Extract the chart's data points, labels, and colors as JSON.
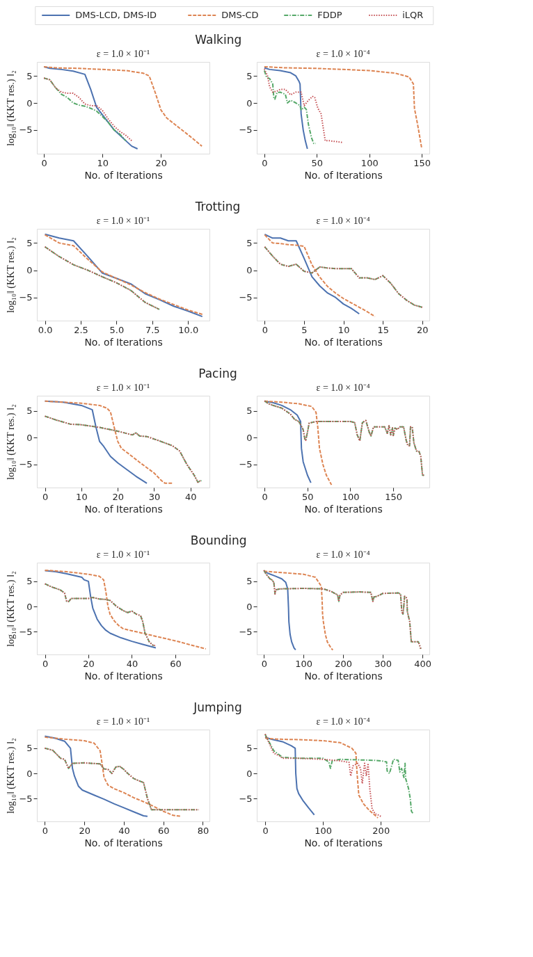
{
  "chart_data": [
    {
      "type": "line",
      "title": "Walking",
      "subtitle": "ε = 1.0 × 10⁻¹",
      "xlabel": "No. of Iterations",
      "ylabel": "log₁₀‖ (KKT res.) ‖₂",
      "legend": "top",
      "xlim": [
        -1.2,
        28.3
      ],
      "xticks": [
        0,
        10,
        20
      ],
      "ylim": [
        -9.4,
        7.6
      ],
      "yticks": [
        -5,
        0,
        5
      ],
      "series": [
        {
          "name": "DMS-LCD, DMS-ID",
          "color": "#4c72b0",
          "line_style": "solid",
          "x": [
            0,
            1,
            3,
            5,
            7,
            8,
            9,
            10,
            11,
            12,
            13,
            14,
            15,
            16
          ],
          "values": [
            6.7,
            6.4,
            6.2,
            5.9,
            5.3,
            2.5,
            -0.8,
            -2.2,
            -3.6,
            -5,
            -6,
            -7,
            -8,
            -8.5
          ]
        },
        {
          "name": "DMS-CD",
          "color": "#dd8452",
          "line_style": "dashed",
          "x": [
            0,
            2,
            6,
            10,
            14,
            17,
            18,
            19,
            20,
            21,
            23,
            25,
            27
          ],
          "values": [
            6.7,
            6.5,
            6.4,
            6.2,
            6,
            5.5,
            5,
            2,
            -1.3,
            -2.8,
            -4.5,
            -6.2,
            -8
          ]
        },
        {
          "name": "FDDP",
          "color": "#55a868",
          "line_style": "dashdot",
          "x": [
            0,
            1,
            2,
            3,
            4,
            5,
            6,
            7,
            8,
            9,
            10,
            11,
            12,
            13,
            14
          ],
          "values": [
            4.6,
            4.3,
            2.8,
            1.6,
            1,
            0,
            -0.4,
            -0.6,
            -1,
            -1.5,
            -2.5,
            -3.6,
            -5,
            -5.8,
            -7
          ]
        },
        {
          "name": "iLQR",
          "color": "#c44e52",
          "line_style": "dotted",
          "x": [
            0,
            1,
            2,
            3,
            4,
            5,
            6,
            7,
            8,
            9,
            10,
            11,
            12,
            13,
            14,
            15
          ],
          "values": [
            4.6,
            4.3,
            2.8,
            2,
            1.8,
            1.8,
            1,
            -0.2,
            -0.5,
            -0.5,
            -1.4,
            -3,
            -4.3,
            -5.3,
            -6,
            -7
          ]
        }
      ]
    },
    {
      "type": "line",
      "subtitle": "ε = 1.0 × 10⁻⁴",
      "xlabel": "No. of Iterations",
      "xlim": [
        -7.2,
        157.2
      ],
      "xticks": [
        0,
        50,
        100,
        150
      ],
      "ylim": [
        -9.4,
        7.6
      ],
      "yticks": [
        -5,
        0,
        5
      ],
      "series": [
        {
          "color": "#4c72b0",
          "line_style": "solid",
          "x": [
            0,
            5,
            15,
            25,
            30,
            33,
            34,
            35,
            37,
            39,
            41
          ],
          "values": [
            6.5,
            6.2,
            6,
            5.6,
            5,
            4,
            3.5,
            -2,
            -5,
            -7,
            -8.5
          ]
        },
        {
          "color": "#dd8452",
          "line_style": "dashed",
          "x": [
            0,
            20,
            50,
            75,
            100,
            125,
            138,
            142,
            143,
            146,
            150
          ],
          "values": [
            6.7,
            6.5,
            6.4,
            6.2,
            6,
            5.5,
            4.8,
            3.5,
            -1,
            -4,
            -8.5
          ]
        },
        {
          "color": "#55a868",
          "line_style": "dashdot",
          "x": [
            0,
            2,
            5,
            8,
            9,
            10,
            12,
            15,
            20,
            22,
            25,
            28,
            30,
            34,
            35,
            38,
            40,
            42,
            45,
            47,
            49
          ],
          "values": [
            6,
            4.8,
            4.5,
            3.5,
            1,
            0.7,
            1.9,
            2,
            1.6,
            0,
            0.5,
            0.2,
            0,
            -0.5,
            -1.3,
            -0.8,
            -1.2,
            -4,
            -6.5,
            -7.5,
            -7.5
          ]
        },
        {
          "color": "#c44e52",
          "line_style": "dotted",
          "x": [
            0,
            3,
            5,
            8,
            12,
            15,
            20,
            25,
            30,
            35,
            38,
            42,
            46,
            48,
            51,
            54,
            58,
            62,
            74
          ],
          "values": [
            6.3,
            5,
            3,
            2,
            2.2,
            2.5,
            2.5,
            1.5,
            2,
            2,
            -0.5,
            0.5,
            1.2,
            1,
            -1,
            -2,
            -7,
            -7,
            -7.3
          ]
        }
      ]
    },
    {
      "type": "line",
      "title": "Trotting",
      "subtitle": "ε = 1.0 × 10⁻¹",
      "xlabel": "No. of Iterations",
      "ylabel": "log₁₀‖ (KKT res.) ‖₂",
      "xlim": [
        -0.56,
        11.5
      ],
      "xticks": [
        {
          "value": 0,
          "label": "0.0"
        },
        2.5,
        {
          "value": 5,
          "label": "5.0"
        },
        7.5,
        {
          "value": 10,
          "label": "10.0"
        }
      ],
      "ylim": [
        -9.25,
        7.6
      ],
      "yticks": [
        -5,
        0,
        5
      ],
      "series": [
        {
          "color": "#4c72b0",
          "line_style": "solid",
          "x": [
            0,
            1,
            2,
            3,
            4,
            5,
            6,
            7,
            8,
            9,
            10,
            11
          ],
          "values": [
            6.6,
            5.9,
            5.4,
            2.5,
            -0.5,
            -1.5,
            -2.5,
            -4.3,
            -5.4,
            -6.6,
            -7.5,
            -8.5
          ]
        },
        {
          "color": "#dd8452",
          "line_style": "dashed",
          "x": [
            0,
            1,
            2,
            3,
            4,
            5,
            6,
            7,
            8,
            9,
            10,
            11
          ],
          "values": [
            6.5,
            5,
            4.5,
            2,
            -0.3,
            -1.5,
            -2.7,
            -4.1,
            -5.3,
            -6.3,
            -7.3,
            -8.1
          ]
        },
        {
          "color": "#55a868",
          "line_style": "dashdot",
          "x": [
            0,
            1,
            2,
            3,
            4,
            5,
            6,
            7,
            8
          ],
          "values": [
            4.3,
            2.5,
            1,
            0,
            -1.2,
            -2.3,
            -3.7,
            -5.9,
            -7.2
          ]
        },
        {
          "color": "#c44e52",
          "line_style": "dotted",
          "x": [
            0,
            1,
            2,
            3,
            4,
            5,
            6,
            7,
            8
          ],
          "values": [
            4.3,
            2.5,
            1,
            0,
            -1.2,
            -2.3,
            -3.7,
            -5.9,
            -7.2
          ]
        }
      ]
    },
    {
      "type": "line",
      "subtitle": "ε = 1.0 × 10⁻⁴",
      "xlabel": "No. of Iterations",
      "xlim": [
        -1,
        20.9
      ],
      "xticks": [
        0,
        5,
        10,
        15,
        20
      ],
      "ylim": [
        -9.25,
        7.6
      ],
      "yticks": [
        -5,
        0,
        5
      ],
      "series": [
        {
          "color": "#4c72b0",
          "line_style": "solid",
          "x": [
            0,
            1,
            2,
            3,
            4,
            5,
            6,
            7,
            8,
            9,
            10,
            11,
            12
          ],
          "values": [
            6.6,
            5.9,
            5.9,
            5.4,
            5.4,
            2.2,
            -1.2,
            -2.9,
            -4.2,
            -5,
            -6.2,
            -7,
            -8
          ]
        },
        {
          "color": "#dd8452",
          "line_style": "dashed",
          "x": [
            0,
            1,
            2,
            3,
            4,
            5,
            6,
            7,
            8,
            9,
            10,
            11,
            12,
            13,
            14
          ],
          "values": [
            6.5,
            5,
            4.9,
            4.7,
            4.6,
            4.4,
            1,
            -1.3,
            -3,
            -4.2,
            -5.2,
            -6,
            -6.8,
            -7.6,
            -8.5
          ]
        },
        {
          "color": "#55a868",
          "line_style": "dashdot",
          "x": [
            0,
            1,
            2,
            3,
            4,
            5,
            6,
            7,
            8,
            9,
            10,
            11,
            12,
            13,
            14,
            15,
            16,
            17,
            18,
            19,
            20
          ],
          "values": [
            4.3,
            2.6,
            1.1,
            0.7,
            1.1,
            -0.2,
            -0.5,
            0.6,
            0.4,
            0.3,
            0.3,
            0.3,
            -1.4,
            -1.4,
            -1.7,
            -1,
            -2.4,
            -4.3,
            -5.5,
            -6.4,
            -6.8
          ]
        },
        {
          "color": "#c44e52",
          "line_style": "dotted",
          "x": [
            0,
            1,
            2,
            3,
            4,
            5,
            6,
            7,
            8,
            9,
            10,
            11,
            12,
            13,
            14,
            15,
            16,
            17,
            18,
            19,
            20
          ],
          "values": [
            4.3,
            2.6,
            1.1,
            0.7,
            1.1,
            -0.2,
            -0.5,
            0.6,
            0.4,
            0.3,
            0.3,
            0.3,
            -1.4,
            -1.4,
            -1.7,
            -1,
            -2.4,
            -4.3,
            -5.5,
            -6.4,
            -6.8
          ]
        }
      ]
    },
    {
      "type": "line",
      "title": "Pacing",
      "subtitle": "ε = 1.0 × 10⁻¹",
      "xlabel": "No. of Iterations",
      "ylabel": "log₁₀‖ (KKT res.) ‖₂",
      "xlim": [
        -2.2,
        45.2
      ],
      "xticks": [
        0,
        10,
        20,
        30,
        40
      ],
      "ylim": [
        -9.3,
        7.8
      ],
      "yticks": [
        -5,
        0,
        5
      ],
      "series": [
        {
          "color": "#4c72b0",
          "line_style": "solid",
          "x": [
            0,
            5,
            10,
            13,
            14,
            15,
            16,
            18,
            20,
            22,
            25,
            28
          ],
          "values": [
            6.8,
            6.6,
            6,
            5.2,
            2,
            -0.7,
            -1.5,
            -3.5,
            -4.7,
            -5.7,
            -7.2,
            -8.5
          ]
        },
        {
          "color": "#dd8452",
          "line_style": "dashed",
          "x": [
            0,
            5,
            10,
            15,
            17,
            18,
            19,
            20,
            21,
            23,
            26,
            30,
            32,
            33,
            35
          ],
          "values": [
            6.8,
            6.6,
            6.4,
            6,
            5.5,
            4.8,
            2,
            -0.7,
            -2,
            -3,
            -4.6,
            -6.6,
            -8,
            -8.5,
            -8.5
          ]
        },
        {
          "color": "#55a868",
          "line_style": "dashdot",
          "x": [
            0,
            3,
            7,
            10,
            15,
            20,
            24,
            25,
            26,
            28,
            31,
            35,
            37,
            39,
            41,
            42,
            43
          ],
          "values": [
            4,
            3.3,
            2.5,
            2.4,
            1.9,
            1.2,
            0.5,
            0.9,
            0.3,
            0.2,
            -0.5,
            -1.5,
            -2.5,
            -5,
            -7,
            -8.3,
            -8
          ]
        },
        {
          "color": "#c44e52",
          "line_style": "dotted",
          "x": [
            0,
            3,
            7,
            10,
            15,
            20,
            24,
            25,
            26,
            28,
            31,
            35,
            37,
            39,
            41,
            42,
            43
          ],
          "values": [
            4,
            3.3,
            2.5,
            2.4,
            1.9,
            1.2,
            0.5,
            0.9,
            0.3,
            0.2,
            -0.5,
            -1.5,
            -2.5,
            -5,
            -7,
            -8.3,
            -7.9
          ]
        }
      ]
    },
    {
      "type": "line",
      "subtitle": "ε = 1.0 × 10⁻⁴",
      "xlabel": "No. of Iterations",
      "xlim": [
        -9,
        192
      ],
      "xticks": [
        0,
        50,
        100,
        150
      ],
      "ylim": [
        -9.3,
        7.8
      ],
      "yticks": [
        -5,
        0,
        5
      ],
      "series": [
        {
          "color": "#4c72b0",
          "line_style": "solid",
          "x": [
            0,
            10,
            20,
            30,
            38,
            42,
            43,
            45,
            50,
            54
          ],
          "values": [
            6.8,
            6.5,
            6,
            5.2,
            4.2,
            3,
            -2,
            -4.5,
            -7,
            -8.4
          ]
        },
        {
          "color": "#dd8452",
          "line_style": "dashed",
          "x": [
            0,
            20,
            40,
            55,
            60,
            62,
            64,
            68,
            72,
            78
          ],
          "values": [
            6.8,
            6.6,
            6.3,
            5.8,
            4.7,
            2,
            -2,
            -5,
            -7,
            -8.8
          ]
        },
        {
          "color": "#55a868",
          "line_style": "dashdot",
          "x": [
            0,
            5,
            10,
            20,
            30,
            35,
            40,
            45,
            47,
            48,
            50,
            52,
            60,
            80,
            100,
            105,
            108,
            111,
            114,
            118,
            122,
            124,
            127,
            130,
            140,
            143,
            145,
            147,
            149,
            150,
            152,
            155,
            157,
            162,
            165,
            167,
            169,
            170,
            172,
            174,
            177,
            180,
            182,
            184,
            186
          ],
          "values": [
            6.8,
            6.3,
            6,
            5.5,
            4.4,
            3.4,
            3,
            1.5,
            -0.3,
            -0.5,
            1,
            2.7,
            3,
            3,
            3,
            2.8,
            0.5,
            -0.6,
            2.8,
            3.2,
            1,
            0.3,
            2,
            2,
            2,
            0.8,
            2.2,
            0.5,
            1.8,
            0.4,
            1.8,
            1.5,
            2,
            2,
            -0.5,
            -1.5,
            -1.5,
            2,
            2,
            -1,
            -2.5,
            -2.6,
            -3.5,
            -7,
            -7
          ]
        },
        {
          "color": "#c44e52",
          "line_style": "dotted",
          "x": [
            0,
            5,
            10,
            20,
            30,
            35,
            40,
            45,
            47,
            48,
            50,
            52,
            60,
            80,
            100,
            105,
            108,
            111,
            114,
            118,
            122,
            124,
            127,
            130,
            140,
            143,
            145,
            147,
            149,
            150,
            152,
            155,
            157,
            162,
            165,
            167,
            169,
            170,
            172,
            174,
            177,
            180,
            182,
            184,
            186
          ],
          "values": [
            6.8,
            6.3,
            6,
            5.5,
            4.4,
            3.4,
            3,
            1.5,
            -0.3,
            -0.5,
            1,
            2.7,
            3,
            3,
            3,
            2.8,
            0.5,
            -0.6,
            2.8,
            3.2,
            1,
            0.3,
            2,
            2,
            2,
            0.8,
            2.2,
            0.5,
            1.8,
            0.4,
            1.8,
            1.5,
            2,
            2,
            -0.5,
            -1.5,
            -1.5,
            2,
            2,
            -1,
            -2.5,
            -2.6,
            -3.5,
            -7,
            -7
          ]
        }
      ]
    },
    {
      "type": "line",
      "title": "Bounding",
      "subtitle": "ε = 1.0 × 10⁻¹",
      "xlabel": "No. of Iterations",
      "ylabel": "log₁₀‖ (KKT res.) ‖₂",
      "xlim": [
        -3.7,
        75.7
      ],
      "xticks": [
        0,
        20,
        40,
        60
      ],
      "ylim": [
        -9.5,
        8.7
      ],
      "yticks": [
        -5,
        0,
        5
      ],
      "series": [
        {
          "color": "#4c72b0",
          "line_style": "solid",
          "x": [
            0,
            5,
            10,
            17,
            18,
            20,
            21,
            22,
            24,
            26,
            28,
            30,
            35,
            40,
            45,
            51
          ],
          "values": [
            7.1,
            6.9,
            6.5,
            5.8,
            5.3,
            5,
            2,
            -0.3,
            -2.5,
            -3.8,
            -4.7,
            -5.3,
            -6.2,
            -6.9,
            -7.5,
            -8.2
          ]
        },
        {
          "color": "#dd8452",
          "line_style": "dashed",
          "x": [
            0,
            10,
            20,
            25,
            27,
            28,
            29,
            30,
            32,
            34,
            36,
            40,
            50,
            60,
            74
          ],
          "values": [
            7.2,
            6.9,
            6.4,
            6,
            5.3,
            3,
            0,
            -1.6,
            -2.9,
            -3.8,
            -4.4,
            -4.8,
            -5.8,
            -6.8,
            -8.4
          ]
        },
        {
          "color": "#55a868",
          "line_style": "dashdot",
          "x": [
            0,
            3,
            7,
            9,
            10,
            11,
            12,
            17,
            20,
            22,
            25,
            28,
            30,
            33,
            36,
            38,
            40,
            42,
            44,
            45,
            46,
            48,
            50
          ],
          "values": [
            4.5,
            3.9,
            3.3,
            2.7,
            1,
            1,
            1.6,
            1.6,
            1.6,
            1.8,
            1.5,
            1.4,
            1.2,
            0,
            -0.8,
            -1.2,
            -0.9,
            -1.5,
            -1.8,
            -3,
            -5.2,
            -7,
            -7.8
          ]
        },
        {
          "color": "#c44e52",
          "line_style": "dotted",
          "x": [
            0,
            3,
            7,
            9,
            10,
            11,
            12,
            17,
            20,
            22,
            25,
            28,
            30,
            33,
            36,
            38,
            40,
            42,
            44,
            45,
            46,
            48,
            50,
            51
          ],
          "values": [
            4.5,
            3.9,
            3.3,
            2.7,
            1,
            1,
            1.6,
            1.6,
            1.6,
            1.8,
            1.5,
            1.4,
            1.2,
            0,
            -0.8,
            -1.2,
            -0.9,
            -1.5,
            -1.8,
            -3,
            -5.2,
            -7,
            -7.8,
            -7.6
          ]
        }
      ]
    },
    {
      "type": "line",
      "subtitle": "ε = 1.0 × 10⁻⁴",
      "xlabel": "No. of Iterations",
      "xlim": [
        -18,
        417.6
      ],
      "xticks": [
        0,
        100,
        200,
        300,
        400
      ],
      "ylim": [
        -9.5,
        8.7
      ],
      "yticks": [
        -5,
        0,
        5
      ],
      "series": [
        {
          "color": "#4c72b0",
          "line_style": "solid",
          "x": [
            0,
            10,
            30,
            45,
            55,
            60,
            62,
            63,
            66,
            70,
            76,
            80
          ],
          "values": [
            7,
            6.6,
            6,
            5.5,
            4.8,
            3.5,
            -0.2,
            -3,
            -5.5,
            -7,
            -8.2,
            -8.6
          ]
        },
        {
          "color": "#dd8452",
          "line_style": "dashed",
          "x": [
            0,
            50,
            100,
            130,
            145,
            147,
            148,
            150,
            155,
            160,
            170,
            174
          ],
          "values": [
            7,
            6.7,
            6.4,
            5.8,
            4,
            1,
            -1.5,
            -3,
            -5.5,
            -7,
            -8.3,
            -8.6
          ]
        },
        {
          "color": "#55a868",
          "line_style": "dashdot",
          "x": [
            0,
            5,
            15,
            20,
            25,
            28,
            30,
            40,
            100,
            150,
            170,
            186,
            189,
            192,
            200,
            240,
            270,
            275,
            278,
            285,
            300,
            340,
            345,
            348,
            351,
            353,
            355,
            358,
            361,
            362,
            368,
            372,
            385,
            390,
            396
          ],
          "values": [
            7.2,
            6.5,
            5.5,
            5.3,
            4.8,
            2.5,
            3.3,
            3.5,
            3.6,
            3.5,
            3,
            2.3,
            1,
            2.3,
            2.8,
            2.9,
            2.8,
            1,
            1.9,
            2,
            2.6,
            2.7,
            2.4,
            -1,
            -1.5,
            0,
            2,
            2,
            1.5,
            -1,
            -3,
            -7,
            -7,
            -7,
            -8.4
          ]
        },
        {
          "color": "#c44e52",
          "line_style": "dotted",
          "x": [
            0,
            5,
            15,
            20,
            25,
            28,
            30,
            40,
            100,
            150,
            170,
            186,
            189,
            192,
            200,
            240,
            270,
            275,
            278,
            285,
            300,
            340,
            345,
            348,
            351,
            353,
            355,
            358,
            361,
            362,
            368,
            372,
            385,
            390,
            396
          ],
          "values": [
            7.2,
            6.5,
            5.5,
            5.3,
            4.8,
            2.5,
            3.3,
            3.5,
            3.6,
            3.5,
            3,
            2.3,
            1,
            2.3,
            2.8,
            2.9,
            2.8,
            1,
            1.9,
            2,
            2.6,
            2.7,
            2.4,
            -1,
            -1.5,
            0,
            2,
            2,
            1.5,
            -1,
            -3,
            -7,
            -7,
            -7,
            -8.4
          ]
        }
      ]
    },
    {
      "type": "line",
      "title": "Jumping",
      "subtitle": "ε = 1.0 × 10⁻¹",
      "xlabel": "No. of Iterations",
      "ylabel": "log₁₀‖ (KKT res.) ‖₂",
      "xlim": [
        -4,
        83.4
      ],
      "xticks": [
        0,
        20,
        40,
        60,
        80
      ],
      "ylim": [
        -9.5,
        8.7
      ],
      "yticks": [
        -5,
        0,
        5
      ],
      "series": [
        {
          "color": "#4c72b0",
          "line_style": "solid",
          "x": [
            0,
            5,
            10,
            13,
            14,
            15,
            17,
            19,
            25,
            30,
            35,
            40,
            45,
            50,
            52
          ],
          "values": [
            7.4,
            7,
            6.4,
            5,
            1,
            -0.5,
            -2.5,
            -3.3,
            -4.3,
            -5.1,
            -6,
            -6.8,
            -7.6,
            -8.4,
            -8.5
          ]
        },
        {
          "color": "#dd8452",
          "line_style": "dashed",
          "x": [
            0,
            10,
            20,
            25,
            28,
            29,
            30,
            32,
            35,
            40,
            45,
            50,
            55,
            60,
            65,
            69
          ],
          "values": [
            7.2,
            6.8,
            6.5,
            6,
            4.5,
            2,
            -0.8,
            -2.3,
            -3,
            -3.8,
            -4.8,
            -5.6,
            -6.5,
            -7.5,
            -8.3,
            -8.5
          ]
        },
        {
          "color": "#55a868",
          "line_style": "dashdot",
          "x": [
            0,
            4,
            8,
            10,
            12,
            14,
            20,
            28,
            30,
            32,
            34,
            36,
            38,
            40,
            42,
            45,
            48,
            50,
            52,
            54,
            60,
            70,
            78
          ],
          "values": [
            5,
            4.6,
            3,
            2.8,
            1,
            2,
            2.1,
            1.9,
            0.9,
            0.8,
            0,
            1.3,
            1.4,
            0.8,
            0,
            -1,
            -1.5,
            -1.8,
            -5,
            -7.2,
            -7.2,
            -7.2,
            -7.2
          ]
        },
        {
          "color": "#c44e52",
          "line_style": "dotted",
          "x": [
            0,
            4,
            8,
            10,
            12,
            14,
            20,
            28,
            30,
            32,
            34,
            36,
            38,
            40,
            42,
            45,
            48,
            50,
            52,
            54,
            60,
            70,
            78
          ],
          "values": [
            5,
            4.6,
            3,
            2.8,
            1,
            2,
            2.1,
            1.9,
            0.9,
            0.8,
            0,
            1.3,
            1.4,
            0.8,
            0,
            -1,
            -1.5,
            -1.8,
            -5,
            -7.2,
            -7.2,
            -7.2,
            -7.2
          ]
        }
      ]
    },
    {
      "type": "line",
      "subtitle": "ε = 1.0 × 10⁻⁴",
      "xlabel": "No. of Iterations",
      "xlim": [
        -14.4,
        284
      ],
      "xticks": [
        0,
        100,
        200
      ],
      "ylim": [
        -9.5,
        8.7
      ],
      "yticks": [
        -5,
        0,
        5
      ],
      "series": [
        {
          "color": "#4c72b0",
          "line_style": "solid",
          "x": [
            0,
            10,
            30,
            45,
            52,
            53,
            55,
            58,
            65,
            75,
            85
          ],
          "values": [
            7.2,
            6.8,
            6.3,
            5.5,
            5,
            0,
            -3,
            -4,
            -5.3,
            -6.8,
            -8.2
          ]
        },
        {
          "color": "#dd8452",
          "line_style": "dashed",
          "x": [
            0,
            20,
            60,
            100,
            130,
            150,
            157,
            159,
            162,
            170,
            180,
            190,
            195
          ],
          "values": [
            7,
            6.8,
            6.7,
            6.5,
            6.1,
            5,
            4,
            0,
            -4.3,
            -6,
            -7.3,
            -8.3,
            -8.8
          ]
        },
        {
          "color": "#55a868",
          "line_style": "dashdot",
          "x": [
            0,
            3,
            8,
            15,
            30,
            60,
            100,
            110,
            113,
            116,
            130,
            160,
            190,
            200,
            210,
            211,
            215,
            220,
            222,
            230,
            233,
            236,
            238,
            240,
            242,
            243,
            248,
            251,
            253,
            256
          ],
          "values": [
            7.8,
            7,
            6,
            4.5,
            3.2,
            3,
            3,
            2.3,
            1,
            2.5,
            2.8,
            2.7,
            2.6,
            2.5,
            2.3,
            0.5,
            0,
            2,
            2.8,
            2.6,
            0.3,
            1,
            0,
            -0.8,
            2,
            -1,
            -3,
            -5,
            -7.5,
            -8
          ]
        },
        {
          "color": "#c44e52",
          "line_style": "dotted",
          "x": [
            0,
            5,
            15,
            25,
            30,
            60,
            100,
            130,
            145,
            148,
            152,
            160,
            165,
            168,
            172,
            175,
            178,
            181,
            185,
            190,
            195,
            200
          ],
          "values": [
            7.8,
            6.5,
            4,
            3.5,
            3,
            3,
            2.8,
            2.5,
            2.2,
            -0.5,
            1.5,
            2,
            1,
            -2,
            2,
            -0.5,
            2,
            -3,
            -7,
            -8,
            -8.2,
            -8.5
          ]
        }
      ]
    }
  ]
}
